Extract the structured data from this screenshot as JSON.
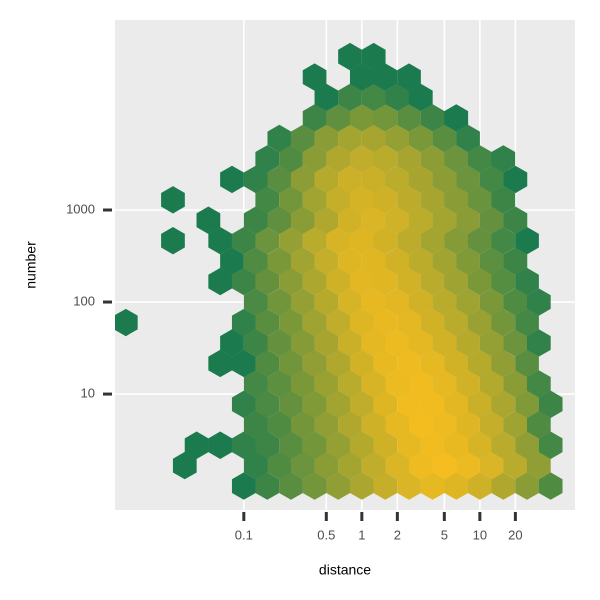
{
  "chart_data": {
    "type": "hexbin",
    "x_label": "distance",
    "y_label": "number",
    "x_log": true,
    "y_log": true,
    "xlim": [
      0.0081,
      64
    ],
    "ylim": [
      0.55,
      116000
    ],
    "xticks": [
      0.1,
      0.5,
      1,
      2,
      5,
      10,
      20
    ],
    "yticks": [
      10,
      100,
      1000
    ],
    "grid": true,
    "low_color": "#1b7b4e",
    "high_color": "#f5bd1f",
    "fill_log": true,
    "hexes": [
      {
        "y": 1,
        "x": [
          0.1,
          0.158,
          0.251,
          0.398,
          0.631,
          1,
          1.58,
          2.51,
          3.98,
          6.31,
          10,
          15.8,
          25.1,
          39.8
        ],
        "values": [
          1,
          3,
          8,
          20,
          50,
          120,
          300,
          600,
          900,
          700,
          400,
          150,
          40,
          6
        ]
      },
      {
        "y": 1.67,
        "x": [
          0.0316,
          0.126,
          0.2,
          0.316,
          0.501,
          0.794,
          1.26,
          2,
          3.16,
          5.01,
          7.94,
          12.6,
          20,
          31.6
        ],
        "values": [
          1,
          2,
          6,
          15,
          40,
          100,
          250,
          600,
          1200,
          1500,
          1100,
          600,
          200,
          50
        ]
      },
      {
        "y": 2.78,
        "x": [
          0.0398,
          0.0631,
          0.1,
          0.158,
          0.251,
          0.398,
          0.631,
          1,
          1.58,
          2.51,
          3.98,
          6.31,
          10,
          15.8,
          25.1,
          39.8
        ],
        "values": [
          1,
          1,
          2,
          3,
          8,
          20,
          60,
          160,
          400,
          900,
          1300,
          1000,
          550,
          200,
          50,
          4
        ]
      },
      {
        "y": 4.64,
        "x": [
          0.126,
          0.2,
          0.316,
          0.501,
          0.794,
          1.26,
          2,
          3.16,
          5.01,
          7.94,
          12.6,
          20,
          31.6
        ],
        "values": [
          3,
          6,
          20,
          50,
          150,
          400,
          900,
          1400,
          1200,
          700,
          300,
          80,
          6
        ]
      },
      {
        "y": 7.74,
        "x": [
          0.1,
          0.158,
          0.251,
          0.398,
          0.631,
          1,
          1.58,
          2.51,
          3.98,
          6.31,
          10,
          15.8,
          25.1,
          39.8
        ],
        "values": [
          2,
          5,
          12,
          30,
          90,
          250,
          700,
          1300,
          1300,
          800,
          350,
          120,
          30,
          3
        ]
      },
      {
        "y": 12.9,
        "x": [
          0.126,
          0.2,
          0.316,
          0.501,
          0.794,
          1.26,
          2,
          3.16,
          5.01,
          7.94,
          12.6,
          20,
          31.6
        ],
        "values": [
          4,
          9,
          25,
          70,
          200,
          550,
          1100,
          1300,
          900,
          450,
          160,
          40,
          4
        ]
      },
      {
        "y": 21.5,
        "x": [
          0.0631,
          0.1,
          0.158,
          0.251,
          0.398,
          0.631,
          1,
          1.58,
          2.51,
          3.98,
          6.31,
          10,
          15.8,
          25.1
        ],
        "values": [
          1,
          1,
          6,
          18,
          50,
          150,
          450,
          1000,
          1200,
          900,
          450,
          180,
          50,
          8
        ]
      },
      {
        "y": 35.9,
        "x": [
          0.0794,
          0.126,
          0.2,
          0.316,
          0.501,
          0.794,
          1.26,
          2,
          3.16,
          5.01,
          7.94,
          12.6,
          20,
          31.6
        ],
        "values": [
          1,
          3,
          12,
          35,
          110,
          350,
          850,
          1100,
          850,
          450,
          180,
          60,
          15,
          2
        ]
      },
      {
        "y": 59.9,
        "x": [
          0.01,
          0.1,
          0.158,
          0.251,
          0.398,
          0.631,
          1,
          1.58,
          2.51,
          3.98,
          6.31,
          10,
          15.8,
          25.1
        ],
        "values": [
          1,
          2,
          8,
          25,
          80,
          250,
          700,
          1000,
          850,
          450,
          200,
          70,
          20,
          4
        ]
      },
      {
        "y": 100,
        "x": [
          0.126,
          0.2,
          0.316,
          0.501,
          0.794,
          1.26,
          2,
          3.16,
          5.01,
          7.94,
          12.6,
          20,
          31.6
        ],
        "values": [
          5,
          18,
          60,
          180,
          550,
          900,
          800,
          450,
          200,
          80,
          25,
          6,
          2
        ]
      },
      {
        "y": 167,
        "x": [
          0.0631,
          0.1,
          0.158,
          0.251,
          0.398,
          0.631,
          1,
          1.58,
          2.51,
          3.98,
          6.31,
          10,
          15.8,
          25.1
        ],
        "values": [
          1,
          3,
          12,
          40,
          130,
          400,
          800,
          750,
          450,
          200,
          80,
          25,
          7,
          2
        ]
      },
      {
        "y": 278,
        "x": [
          0.0794,
          0.126,
          0.2,
          0.316,
          0.501,
          0.794,
          1.26,
          2,
          3.16,
          5.01,
          7.94,
          12.6,
          20
        ],
        "values": [
          1,
          6,
          25,
          90,
          300,
          700,
          750,
          450,
          220,
          90,
          30,
          9,
          3
        ]
      },
      {
        "y": 464,
        "x": [
          0.0251,
          0.0631,
          0.1,
          0.158,
          0.251,
          0.398,
          0.631,
          1,
          1.58,
          2.51,
          3.98,
          6.31,
          10,
          15.8,
          25.1
        ],
        "values": [
          1,
          1,
          3,
          15,
          60,
          200,
          550,
          700,
          450,
          230,
          100,
          35,
          12,
          4,
          1
        ]
      },
      {
        "y": 774,
        "x": [
          0.0501,
          0.126,
          0.2,
          0.316,
          0.501,
          0.794,
          1.26,
          2,
          3.16,
          5.01,
          7.94,
          12.6,
          20
        ],
        "values": [
          1,
          3,
          10,
          40,
          150,
          450,
          600,
          420,
          220,
          100,
          40,
          12,
          3
        ]
      },
      {
        "y": 1290,
        "x": [
          0.0251,
          0.158,
          0.251,
          0.398,
          0.631,
          1,
          1.58,
          2.51,
          3.98,
          6.31,
          10,
          15.8
        ],
        "values": [
          1,
          4,
          20,
          90,
          300,
          500,
          400,
          230,
          110,
          40,
          14,
          3
        ]
      },
      {
        "y": 2150,
        "x": [
          0.0794,
          0.126,
          0.2,
          0.316,
          0.501,
          0.794,
          1.26,
          2,
          3.16,
          5.01,
          7.94,
          12.6,
          20
        ],
        "values": [
          1,
          2,
          8,
          45,
          180,
          380,
          350,
          220,
          110,
          45,
          15,
          4,
          1
        ]
      },
      {
        "y": 3590,
        "x": [
          0.158,
          0.251,
          0.398,
          0.631,
          1,
          1.58,
          2.51,
          3.98,
          6.31,
          10,
          15.8
        ],
        "values": [
          2,
          6,
          40,
          150,
          250,
          200,
          110,
          45,
          15,
          4,
          2
        ]
      },
      {
        "y": 5990,
        "x": [
          0.2,
          0.316,
          0.501,
          0.794,
          1.26,
          2,
          3.16,
          5.01,
          7.94
        ],
        "values": [
          2,
          8,
          40,
          100,
          110,
          60,
          25,
          8,
          2
        ]
      },
      {
        "y": 10000,
        "x": [
          0.398,
          0.631,
          1,
          1.58,
          2.51,
          3.98,
          6.31
        ],
        "values": [
          3,
          10,
          25,
          20,
          8,
          3,
          1
        ]
      },
      {
        "y": 16700,
        "x": [
          0.501,
          0.794,
          1.26,
          2,
          3.16
        ],
        "values": [
          1,
          3,
          4,
          2,
          1
        ]
      },
      {
        "y": 27800,
        "x": [
          0.398,
          1,
          1.58,
          2.51
        ],
        "values": [
          1,
          1,
          1,
          1
        ]
      },
      {
        "y": 46400,
        "x": [
          0.794,
          1.26
        ],
        "values": [
          1,
          1
        ]
      }
    ]
  }
}
